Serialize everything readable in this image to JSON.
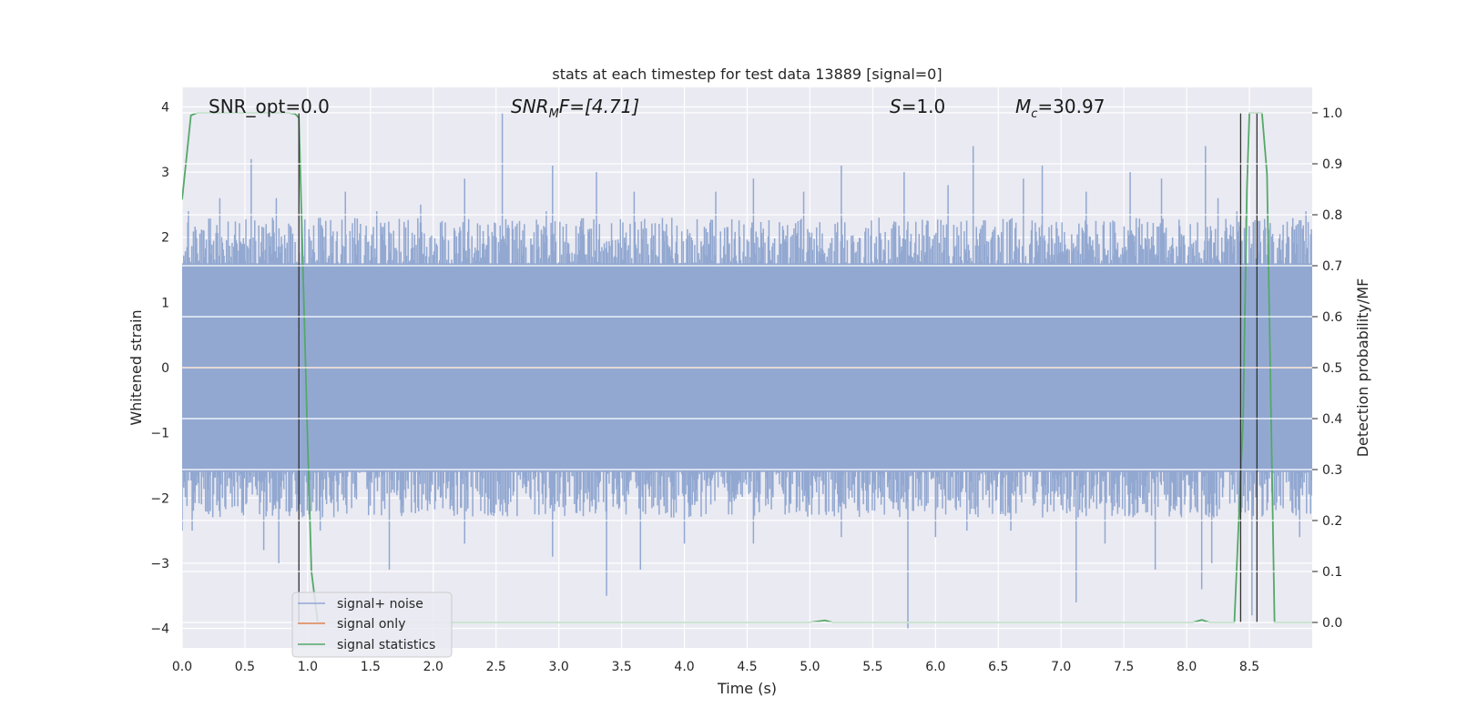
{
  "chart_data": {
    "type": "line",
    "title": "stats at each timestep for test data 13889 [signal=0]",
    "xlabel": "Time (s)",
    "ylabel": "Whitened strain",
    "ylabel_right": "Detection probability/MF",
    "xlim": [
      0.0,
      9.0
    ],
    "ylim": [
      -4.3,
      4.3
    ],
    "ylim_right": [
      -0.05,
      1.05
    ],
    "x_ticks": [
      "0.0",
      "0.5",
      "1.0",
      "1.5",
      "2.0",
      "2.5",
      "3.0",
      "3.5",
      "4.0",
      "4.5",
      "5.0",
      "5.5",
      "6.0",
      "6.5",
      "7.0",
      "7.5",
      "8.0",
      "8.5"
    ],
    "y_ticks": [
      "4",
      "3",
      "2",
      "1",
      "0",
      "−1",
      "−2",
      "−3",
      "−4"
    ],
    "y_ticks_right": [
      "1.0",
      "0.9",
      "0.8",
      "0.7",
      "0.6",
      "0.5",
      "0.4",
      "0.3",
      "0.2",
      "0.1",
      "0.0"
    ],
    "grid": true,
    "legend_position": "lower-left",
    "annotations": [
      {
        "id": "snr-opt",
        "text": "SNR_opt=0.0",
        "x": 0.2,
        "y": 4.0
      },
      {
        "id": "snr-mf",
        "text_parts": [
          "SNR",
          "M",
          "F=[4.71]"
        ],
        "x": 2.6,
        "y": 4.0
      },
      {
        "id": "s-stat",
        "text_parts": [
          "S",
          "=1.0"
        ],
        "x": 5.6,
        "y": 4.0
      },
      {
        "id": "mc",
        "text_parts": [
          "M",
          "c",
          "=30.97"
        ],
        "x": 6.6,
        "y": 4.0
      }
    ],
    "series": [
      {
        "name": "signal+ noise",
        "color": "#92a8d1",
        "kind": "noise",
        "duration": 9.0,
        "typical_range": [
          -1.6,
          1.6
        ],
        "peaks_pos": [
          [
            0.05,
            2.4
          ],
          [
            0.3,
            2.6
          ],
          [
            0.55,
            3.2
          ],
          [
            0.75,
            2.6
          ],
          [
            1.1,
            2.3
          ],
          [
            1.3,
            2.7
          ],
          [
            1.55,
            2.4
          ],
          [
            1.9,
            2.5
          ],
          [
            2.25,
            2.9
          ],
          [
            2.55,
            3.9
          ],
          [
            2.9,
            2.4
          ],
          [
            2.95,
            3.1
          ],
          [
            3.3,
            3.0
          ],
          [
            3.6,
            2.7
          ],
          [
            3.9,
            2.3
          ],
          [
            4.25,
            2.7
          ],
          [
            4.55,
            2.9
          ],
          [
            4.95,
            2.7
          ],
          [
            5.25,
            3.1
          ],
          [
            5.55,
            2.3
          ],
          [
            5.75,
            3.0
          ],
          [
            6.1,
            2.8
          ],
          [
            6.3,
            3.4
          ],
          [
            6.7,
            2.9
          ],
          [
            6.85,
            3.1
          ],
          [
            7.2,
            2.7
          ],
          [
            7.55,
            3.0
          ],
          [
            7.8,
            2.9
          ],
          [
            8.15,
            3.4
          ],
          [
            8.25,
            2.6
          ],
          [
            8.4,
            2.4
          ],
          [
            8.95,
            2.4
          ]
        ],
        "peaks_neg": [
          [
            0.0,
            -2.5
          ],
          [
            0.08,
            -2.5
          ],
          [
            0.65,
            -2.8
          ],
          [
            0.77,
            -3.0
          ],
          [
            1.1,
            -2.5
          ],
          [
            1.65,
            -3.1
          ],
          [
            2.25,
            -2.7
          ],
          [
            2.95,
            -2.9
          ],
          [
            3.38,
            -3.5
          ],
          [
            3.65,
            -3.1
          ],
          [
            4.0,
            -2.7
          ],
          [
            4.55,
            -2.7
          ],
          [
            5.25,
            -2.6
          ],
          [
            5.78,
            -4.0
          ],
          [
            6.0,
            -2.6
          ],
          [
            6.25,
            -2.5
          ],
          [
            6.6,
            -2.5
          ],
          [
            7.12,
            -3.6
          ],
          [
            7.35,
            -2.7
          ],
          [
            7.75,
            -3.1
          ],
          [
            8.12,
            -3.4
          ],
          [
            8.2,
            -3.0
          ],
          [
            8.52,
            -3.8
          ],
          [
            8.9,
            -2.6
          ]
        ]
      },
      {
        "name": "signal only",
        "color": "#dd8452",
        "x": [
          0.0,
          9.0
        ],
        "y": [
          0.0,
          0.0
        ]
      },
      {
        "name": "signal statistics",
        "color": "#55a868",
        "axis": "right",
        "x": [
          0.0,
          0.07,
          0.1,
          0.12,
          0.2,
          0.85,
          0.9,
          0.93,
          1.0,
          1.03,
          1.08,
          1.12,
          1.2,
          5.0,
          5.12,
          5.18,
          8.05,
          8.12,
          8.18,
          8.38,
          8.45,
          8.48,
          8.5,
          8.54,
          8.6,
          8.64,
          8.7,
          9.0
        ],
        "y": [
          0.83,
          0.995,
          0.998,
          1.0,
          1.0,
          1.0,
          0.998,
          0.99,
          0.35,
          0.1,
          0.0,
          0.0,
          0.0,
          0.0,
          0.004,
          0.0,
          0.0,
          0.005,
          0.0,
          0.0,
          0.4,
          0.85,
          1.0,
          1.0,
          1.0,
          0.88,
          0.0,
          0.0
        ]
      }
    ],
    "vertical_markers": {
      "color": "#303030",
      "axis": "right",
      "lines": [
        {
          "x": 0.93,
          "y0": 0.0,
          "y1": 1.0
        },
        {
          "x": 8.43,
          "y0": 0.0,
          "y1": 1.0
        },
        {
          "x": 8.56,
          "y0": 0.0,
          "y1": 1.0
        }
      ]
    }
  }
}
